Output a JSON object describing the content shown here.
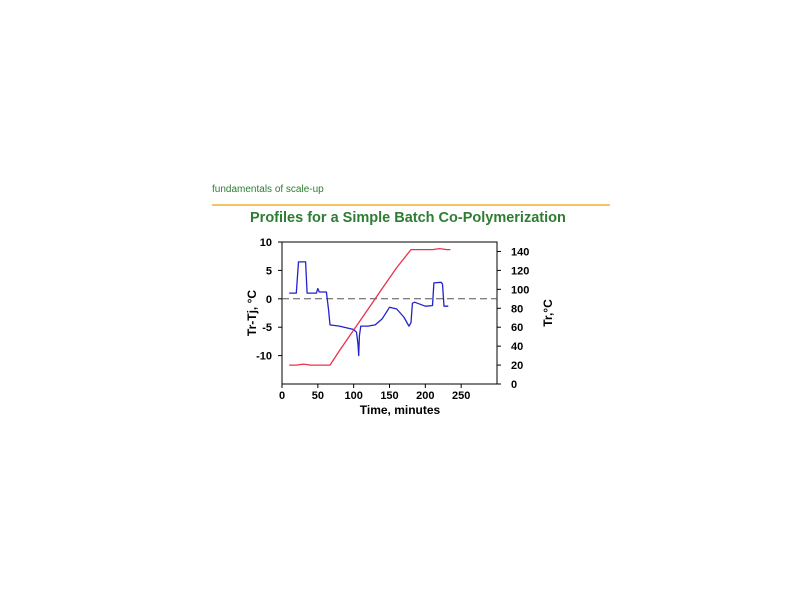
{
  "header": {
    "subtitle": "fundamentals of scale-up"
  },
  "slide": {
    "title": "Profiles for a Simple Batch Co-Polymerization"
  },
  "colors": {
    "accent_rule": "#f3c567",
    "title_green": "#2e7d32",
    "series_delta": "#2222cc",
    "series_temp": "#e8334a",
    "zero_line": "#555555"
  },
  "chart_data": {
    "type": "line",
    "xlabel": "Time, minutes",
    "ylabel_left": "Tr-Tj, °C",
    "ylabel_right": "Tr,°C",
    "xlim": [
      0,
      300
    ],
    "ylim_left": [
      -15,
      10
    ],
    "ylim_right": [
      0,
      150
    ],
    "x_ticks": [
      "0",
      "50",
      "100",
      "150",
      "200",
      "250"
    ],
    "y_ticks_left": [
      "10",
      "5",
      "0",
      "-5",
      "-10"
    ],
    "y_ticks_right": [
      "140",
      "120",
      "100",
      "80",
      "60",
      "40",
      "20",
      "0"
    ],
    "reference_line": {
      "axis": "left",
      "y": 0,
      "style": "dashed"
    },
    "series": [
      {
        "axis": "left",
        "color": "#2222cc",
        "x": [
          10,
          20,
          23,
          33,
          35,
          48,
          50,
          52,
          54,
          62,
          65,
          67,
          80,
          100,
          104,
          106,
          107,
          108,
          110,
          112,
          120,
          130,
          140,
          150,
          160,
          170,
          177,
          180,
          182,
          185,
          200,
          210,
          212,
          222,
          224,
          226,
          232
        ],
        "y": [
          1,
          1,
          6.5,
          6.5,
          1,
          1,
          1.8,
          1.2,
          1.2,
          1.2,
          -2,
          -4.6,
          -4.8,
          -5.4,
          -5.9,
          -8,
          -10,
          -6.5,
          -4.8,
          -4.8,
          -4.8,
          -4.6,
          -3.5,
          -1.5,
          -1.8,
          -3.2,
          -4.8,
          -4.2,
          -0.8,
          -0.6,
          -1.3,
          -1.2,
          2.8,
          2.9,
          2.6,
          -1.3,
          -1.3
        ]
      },
      {
        "axis": "right",
        "color": "#e8334a",
        "x": [
          10,
          20,
          30,
          40,
          50,
          60,
          67,
          80,
          100,
          120,
          140,
          160,
          180,
          187,
          200,
          210,
          220,
          230,
          235
        ],
        "y": [
          20,
          20,
          21,
          20,
          20,
          20,
          20,
          35,
          57,
          79,
          101,
          123,
          142,
          142,
          142,
          142,
          143,
          142,
          142
        ]
      }
    ]
  }
}
